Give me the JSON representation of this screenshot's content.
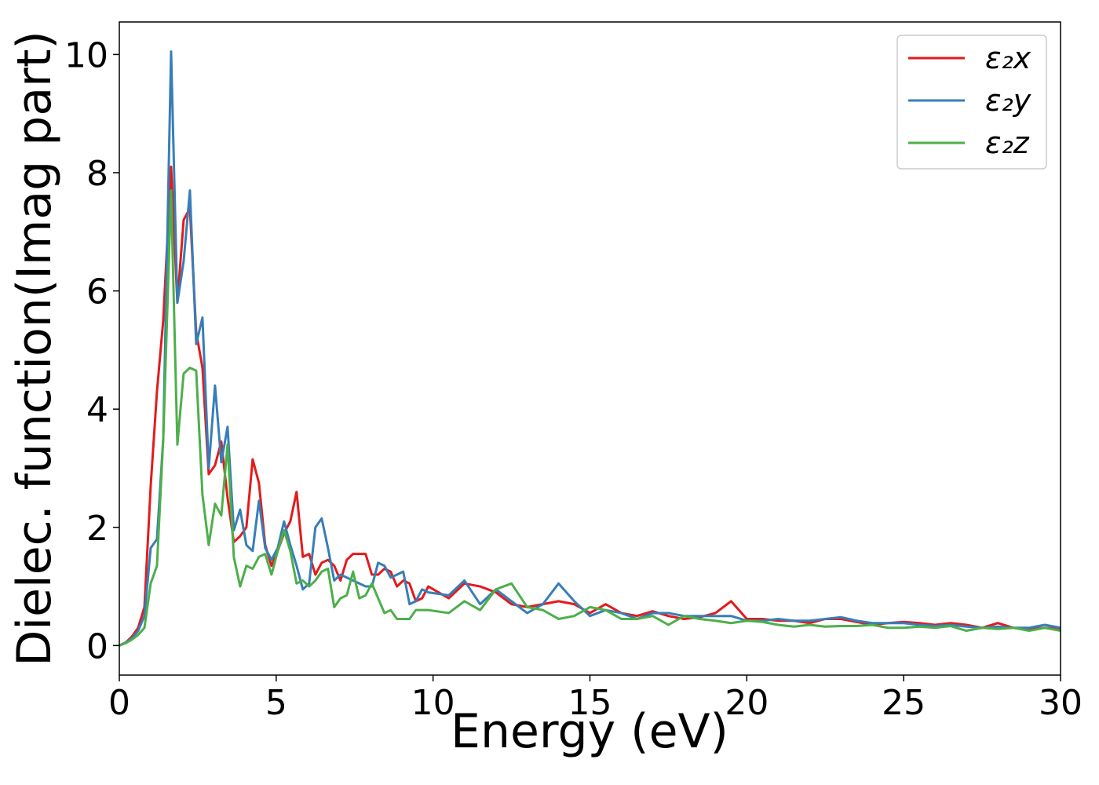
{
  "chart_data": {
    "type": "line",
    "xlabel": "Energy (eV)",
    "ylabel": "Dielec. function(Imag part)",
    "x": [
      0,
      0.2,
      0.4,
      0.6,
      0.8,
      1.0,
      1.2,
      1.4,
      1.65,
      1.85,
      2.05,
      2.25,
      2.45,
      2.65,
      2.85,
      3.05,
      3.25,
      3.45,
      3.65,
      3.85,
      4.05,
      4.25,
      4.45,
      4.65,
      4.85,
      5.05,
      5.25,
      5.45,
      5.65,
      5.85,
      6.05,
      6.25,
      6.45,
      6.65,
      6.85,
      7.05,
      7.25,
      7.45,
      7.65,
      7.85,
      8.05,
      8.25,
      8.45,
      8.65,
      8.85,
      9.05,
      9.25,
      9.45,
      9.65,
      9.85,
      10.5,
      11,
      11.5,
      12,
      12.5,
      13,
      13.5,
      14,
      14.5,
      15,
      15.5,
      16,
      16.5,
      17,
      17.5,
      18,
      18.5,
      19,
      19.5,
      20,
      20.5,
      21,
      21.5,
      22,
      22.5,
      23,
      23.5,
      24,
      24.5,
      25,
      25.5,
      26,
      26.5,
      27,
      27.5,
      28,
      28.5,
      29,
      29.5,
      30
    ],
    "series": [
      {
        "name": "ε₂x",
        "color": "#e41a1c",
        "values": [
          0,
          0.05,
          0.15,
          0.3,
          0.65,
          2.7,
          4.3,
          5.5,
          8.1,
          5.8,
          7.2,
          7.4,
          5.3,
          4.7,
          2.9,
          3.05,
          3.45,
          2.5,
          1.75,
          1.85,
          2.0,
          3.15,
          2.75,
          1.7,
          1.35,
          1.6,
          1.9,
          2.1,
          2.6,
          1.5,
          1.55,
          1.2,
          1.4,
          1.45,
          1.35,
          1.1,
          1.45,
          1.55,
          1.55,
          1.55,
          1.2,
          1.2,
          1.3,
          1.25,
          1.0,
          1.1,
          1.05,
          0.75,
          0.8,
          1.0,
          0.8,
          1.05,
          1.0,
          0.9,
          0.7,
          0.65,
          0.7,
          0.75,
          0.7,
          0.55,
          0.7,
          0.55,
          0.5,
          0.58,
          0.5,
          0.45,
          0.48,
          0.55,
          0.75,
          0.45,
          0.45,
          0.42,
          0.42,
          0.38,
          0.45,
          0.45,
          0.4,
          0.35,
          0.38,
          0.4,
          0.38,
          0.35,
          0.38,
          0.35,
          0.3,
          0.38,
          0.3,
          0.28,
          0.3,
          0.28
        ]
      },
      {
        "name": "ε₂y",
        "color": "#377eb8",
        "values": [
          0,
          0.05,
          0.12,
          0.25,
          0.5,
          1.65,
          1.8,
          3.5,
          10.05,
          5.8,
          6.5,
          7.7,
          5.1,
          5.55,
          3.0,
          4.4,
          3.1,
          3.7,
          1.95,
          2.3,
          1.7,
          1.6,
          2.45,
          1.65,
          1.45,
          1.65,
          2.1,
          1.7,
          1.35,
          0.95,
          1.05,
          2.0,
          2.15,
          1.65,
          1.1,
          1.2,
          1.15,
          1.1,
          1.05,
          1.0,
          1.0,
          1.4,
          1.35,
          1.15,
          1.2,
          1.25,
          0.7,
          0.75,
          0.95,
          0.9,
          0.85,
          1.1,
          0.7,
          0.95,
          0.75,
          0.55,
          0.7,
          1.05,
          0.75,
          0.5,
          0.6,
          0.55,
          0.45,
          0.55,
          0.55,
          0.5,
          0.5,
          0.5,
          0.5,
          0.42,
          0.42,
          0.45,
          0.42,
          0.42,
          0.45,
          0.48,
          0.42,
          0.38,
          0.38,
          0.38,
          0.35,
          0.33,
          0.35,
          0.32,
          0.3,
          0.32,
          0.3,
          0.3,
          0.35,
          0.3
        ]
      },
      {
        "name": "ε₂z",
        "color": "#4daf4a",
        "values": [
          0,
          0.04,
          0.1,
          0.18,
          0.3,
          1.05,
          1.35,
          3.5,
          7.7,
          3.4,
          4.6,
          4.7,
          4.65,
          2.55,
          1.7,
          2.4,
          2.2,
          3.4,
          1.5,
          1.0,
          1.35,
          1.3,
          1.5,
          1.55,
          1.2,
          1.6,
          1.95,
          1.6,
          1.05,
          1.1,
          1.0,
          1.1,
          1.25,
          1.3,
          0.65,
          0.8,
          0.85,
          1.25,
          0.8,
          0.85,
          1.05,
          0.8,
          0.55,
          0.6,
          0.45,
          0.45,
          0.45,
          0.6,
          0.6,
          0.6,
          0.55,
          0.75,
          0.6,
          0.95,
          1.05,
          0.65,
          0.6,
          0.45,
          0.5,
          0.65,
          0.6,
          0.45,
          0.45,
          0.5,
          0.35,
          0.5,
          0.45,
          0.42,
          0.38,
          0.42,
          0.4,
          0.35,
          0.32,
          0.35,
          0.32,
          0.33,
          0.33,
          0.35,
          0.3,
          0.3,
          0.32,
          0.3,
          0.33,
          0.25,
          0.3,
          0.28,
          0.3,
          0.25,
          0.3,
          0.25
        ]
      }
    ],
    "xlim": [
      0,
      30
    ],
    "xticks": [
      0,
      5,
      10,
      15,
      20,
      25,
      30
    ],
    "ylim": [
      -0.5,
      10.55
    ],
    "yticks": [
      0,
      2,
      4,
      6,
      8,
      10
    ],
    "legend": "upper right"
  }
}
